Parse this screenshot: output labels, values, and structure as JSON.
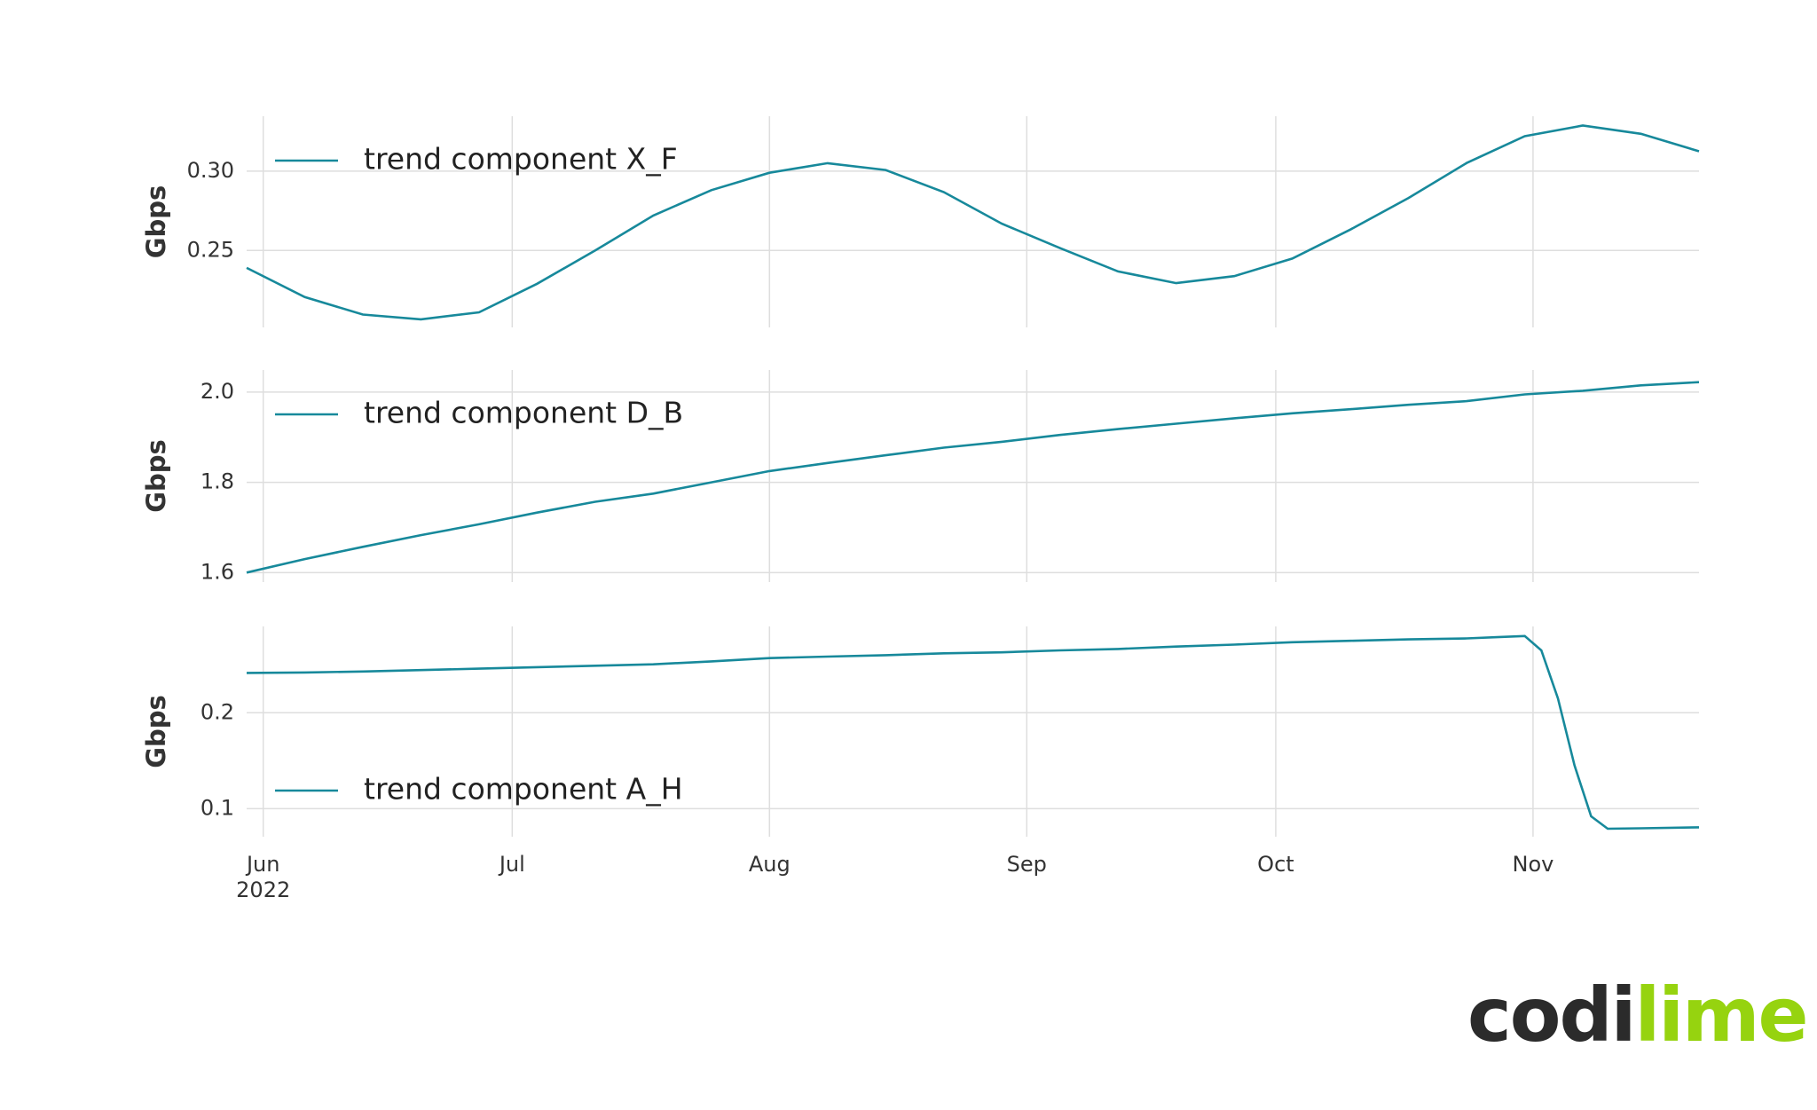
{
  "chart_data": [
    {
      "type": "line",
      "ylabel": "Gbps",
      "legend": "upper left",
      "grid": true,
      "xlim": [
        "2022-05-30",
        "2022-11-21"
      ],
      "xticks": [
        "2022-06-01",
        "2022-07-01",
        "2022-08-01",
        "2022-09-01",
        "2022-10-01",
        "2022-11-01"
      ],
      "ylim": [
        0.2015,
        0.3346
      ],
      "yticks": [
        0.25,
        {
          "value": 0.3,
          "label": "0.30"
        }
      ],
      "x": [
        "2022-05-30",
        "2022-06-06",
        "2022-06-13",
        "2022-06-20",
        "2022-06-27",
        "2022-07-04",
        "2022-07-11",
        "2022-07-18",
        "2022-07-25",
        "2022-08-01",
        "2022-08-08",
        "2022-08-15",
        "2022-08-22",
        "2022-08-29",
        "2022-09-05",
        "2022-09-12",
        "2022-09-19",
        "2022-09-26",
        "2022-10-03",
        "2022-10-10",
        "2022-10-17",
        "2022-10-24",
        "2022-10-31",
        "2022-11-07",
        "2022-11-14",
        "2022-11-21"
      ],
      "series": [
        {
          "name": "trend component X_F",
          "color": "#17899b",
          "values": [
            0.239,
            0.2206,
            0.2096,
            0.2066,
            0.211,
            0.229,
            0.25,
            0.272,
            0.288,
            0.299,
            0.305,
            0.3007,
            0.2868,
            0.2669,
            0.2515,
            0.2368,
            0.2294,
            0.2338,
            0.2449,
            0.2632,
            0.2831,
            0.3051,
            0.322,
            0.3287,
            0.3235,
            0.3125
          ]
        }
      ]
    },
    {
      "type": "line",
      "ylabel": "Gbps",
      "legend": "upper left",
      "grid": true,
      "xlim": [
        "2022-05-30",
        "2022-11-21"
      ],
      "xticks": [
        "2022-06-01",
        "2022-07-01",
        "2022-08-01",
        "2022-09-01",
        "2022-10-01",
        "2022-11-01"
      ],
      "ylim": [
        1.579,
        2.049
      ],
      "yticks": [
        1.6,
        1.8,
        {
          "value": 2,
          "label": "2.0"
        }
      ],
      "x": [
        "2022-05-30",
        "2022-06-06",
        "2022-06-13",
        "2022-06-20",
        "2022-06-27",
        "2022-07-04",
        "2022-07-11",
        "2022-07-18",
        "2022-07-25",
        "2022-08-01",
        "2022-08-08",
        "2022-08-15",
        "2022-08-22",
        "2022-08-29",
        "2022-09-05",
        "2022-09-12",
        "2022-09-19",
        "2022-09-26",
        "2022-10-03",
        "2022-10-10",
        "2022-10-17",
        "2022-10-24",
        "2022-10-31",
        "2022-11-07",
        "2022-11-14",
        "2022-11-21"
      ],
      "series": [
        {
          "name": "trend component D_B",
          "color": "#17899b",
          "values": [
            1.6,
            1.63,
            1.657,
            1.683,
            1.707,
            1.733,
            1.757,
            1.775,
            1.8,
            1.825,
            1.843,
            1.86,
            1.877,
            1.89,
            1.905,
            1.918,
            1.93,
            1.942,
            1.953,
            1.962,
            1.972,
            1.98,
            1.995,
            2.003,
            2.015,
            2.022
          ]
        }
      ]
    },
    {
      "type": "line",
      "ylabel": "Gbps",
      "legend": "lower left",
      "grid": true,
      "xlim": [
        "2022-05-30",
        "2022-11-21"
      ],
      "xticks": [
        {
          "value": "2022-06-01",
          "label": "Jun\n2022"
        },
        {
          "value": "2022-07-01",
          "label": "Jul"
        },
        {
          "value": "2022-08-01",
          "label": "Aug"
        },
        {
          "value": "2022-09-01",
          "label": "Sep"
        },
        {
          "value": "2022-10-01",
          "label": "Oct"
        },
        {
          "value": "2022-11-01",
          "label": "Nov"
        }
      ],
      "ylim": [
        0.0707,
        0.29
      ],
      "yticks": [
        0.1,
        0.2
      ],
      "x": [
        "2022-05-30",
        "2022-06-06",
        "2022-06-13",
        "2022-06-20",
        "2022-06-27",
        "2022-07-04",
        "2022-07-11",
        "2022-07-18",
        "2022-07-25",
        "2022-08-01",
        "2022-08-08",
        "2022-08-15",
        "2022-08-22",
        "2022-08-29",
        "2022-09-05",
        "2022-09-12",
        "2022-09-19",
        "2022-09-26",
        "2022-10-03",
        "2022-10-10",
        "2022-10-17",
        "2022-10-24",
        "2022-10-28",
        "2022-10-31",
        "2022-11-02",
        "2022-11-04",
        "2022-11-06",
        "2022-11-08",
        "2022-11-10",
        "2022-11-14",
        "2022-11-21"
      ],
      "series": [
        {
          "name": "trend component A_H",
          "color": "#17899b",
          "values": [
            0.2415,
            0.242,
            0.243,
            0.2445,
            0.246,
            0.2475,
            0.249,
            0.2505,
            0.2535,
            0.257,
            0.2585,
            0.26,
            0.262,
            0.263,
            0.265,
            0.2665,
            0.269,
            0.271,
            0.2735,
            0.275,
            0.2765,
            0.2775,
            0.279,
            0.28,
            0.265,
            0.215,
            0.145,
            0.092,
            0.079,
            0.0795,
            0.0805
          ]
        }
      ]
    }
  ],
  "logo": {
    "dark": "codi",
    "green": "lime"
  }
}
